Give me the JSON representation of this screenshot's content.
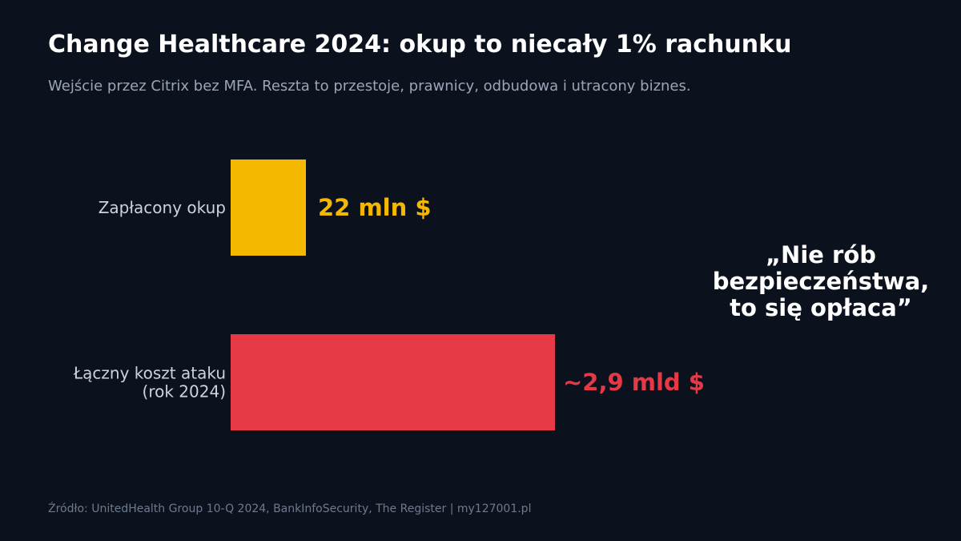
{
  "title": "Change Healthcare 2024: okup to niecały 1% rachunku",
  "subtitle": "Wejście przez Citrix bez MFA. Reszta to przestoje, prawnicy, odbudowa i utracony biznes.",
  "quote": "„Nie rób bezpieczeństwa, to się opłaca”",
  "source": "Źródło: UnitedHealth Group 10-Q 2024, BankInfoSecurity, The Register  |  my127001.pl",
  "colors": {
    "background": "#0b121e",
    "ransom": "#f5b800",
    "total": "#e63946"
  },
  "chart_data": {
    "type": "bar",
    "orientation": "horizontal",
    "bars": [
      {
        "category": [
          "Zapłacony okup"
        ],
        "value_label": "22 mln $",
        "color": "#f5b800"
      },
      {
        "category": [
          "Łączny koszt ataku",
          "(rok 2024)"
        ],
        "value_label": "~2,9 mld $",
        "color": "#e63946"
      }
    ],
    "scale_note": "bar lengths not proportional to values (schematic)",
    "grid": false,
    "legend": "none"
  }
}
